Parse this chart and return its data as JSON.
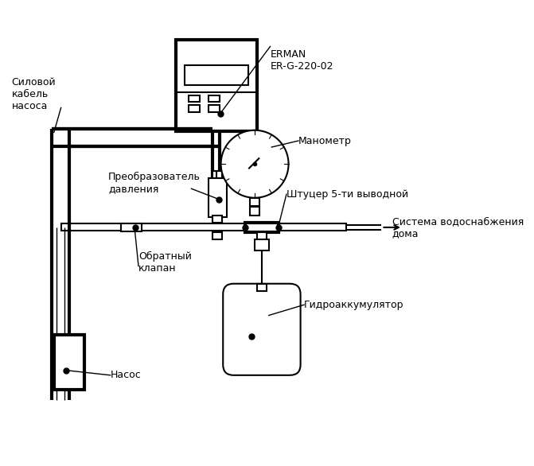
{
  "bg_color": "#ffffff",
  "lc": "#000000",
  "lw": 1.5,
  "tlw": 3.0,
  "labels": {
    "erman": "ERMAN\nER-G-220-02",
    "silovoy": "Силовой\nкабель\nнасоса",
    "manometr": "Манометр",
    "preobrazovatel": "Преобразователь\nдавления",
    "shtutser": "Штуцер 5-ти выводной",
    "obratny": "Обратный\nклапан",
    "sistema": "Система водоснабжения\nдома",
    "gidro": "Гидроаккумулятор",
    "nasos": "Насос"
  },
  "fs": 9
}
